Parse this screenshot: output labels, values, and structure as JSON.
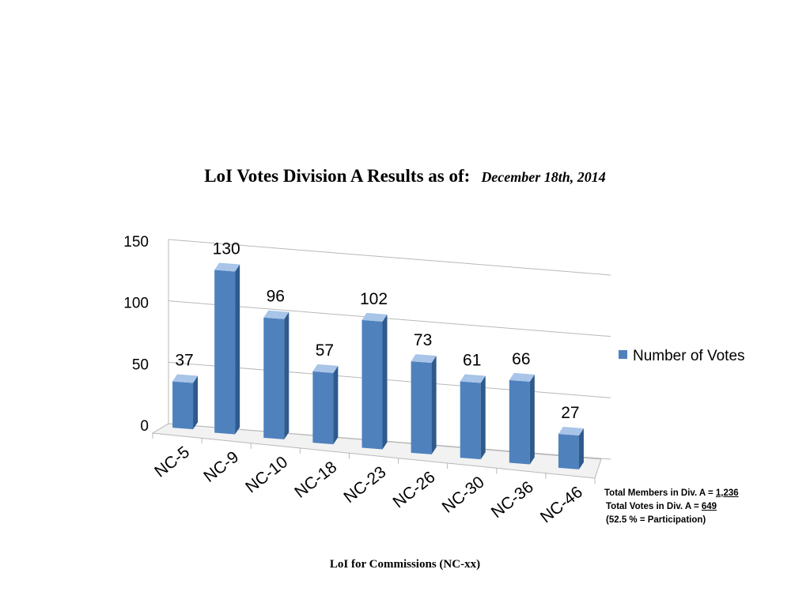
{
  "title": {
    "main": "LoI Votes Division A Results as of:",
    "date": "December 18th, 2014"
  },
  "notes": {
    "members_label": "Total Members in Div. A = ",
    "members_value": "1,236",
    "votes_label": "Total Votes in Div. A = ",
    "votes_value": "649",
    "participation": "(52.5 % = Participation)"
  },
  "colors": {
    "bar_front": "#4f81bd",
    "bar_side": "#2e5a8c",
    "bar_top": "#a8c4e8",
    "grid": "#b8b8b8"
  },
  "chart_data": {
    "type": "bar",
    "title": "LoI Votes Division A Results as of: December 18th, 2014",
    "xlabel": "LoI for Commissions (NC-xx)",
    "ylabel": "",
    "categories": [
      "NC-5",
      "NC-9",
      "NC-10",
      "NC-18",
      "NC-23",
      "NC-26",
      "NC-30",
      "NC-36",
      "NC-46"
    ],
    "series": [
      {
        "name": "Number of Votes",
        "values": [
          37,
          130,
          96,
          57,
          102,
          73,
          61,
          66,
          27
        ]
      }
    ],
    "ylim": [
      0,
      150
    ],
    "yticks": [
      0,
      50,
      100,
      150
    ],
    "grid": true,
    "legend": "right",
    "data_labels": true,
    "style": "3d-column"
  }
}
